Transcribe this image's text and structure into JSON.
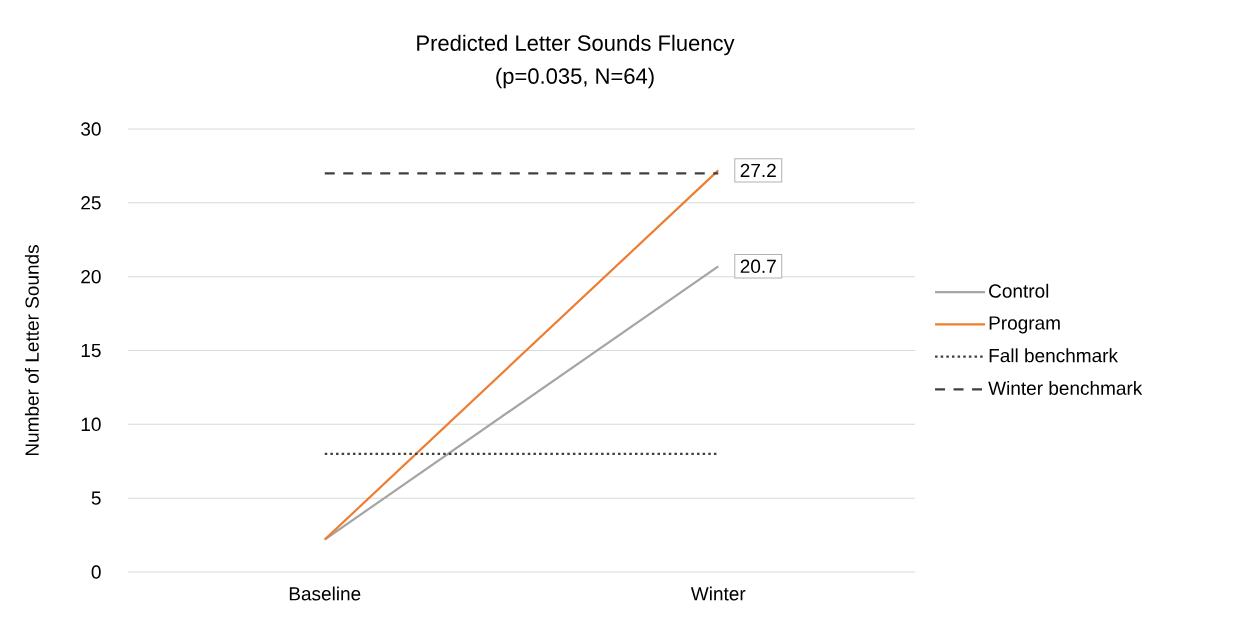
{
  "chart_data": {
    "type": "line",
    "title": "Predicted Letter Sounds Fluency",
    "subtitle": "(p=0.035, N=64)",
    "ylabel": "Number of Letter Sounds",
    "categories": [
      "Baseline",
      "Winter"
    ],
    "series": [
      {
        "name": "Control",
        "color": "#a5a5a5",
        "values": [
          2.2,
          20.7
        ],
        "value_labels": [
          null,
          "20.7"
        ]
      },
      {
        "name": "Program",
        "color": "#ed7d31",
        "values": [
          2.2,
          27.2
        ],
        "value_labels": [
          null,
          "27.2"
        ]
      },
      {
        "name": "Fall benchmark",
        "color": "#404040",
        "values": [
          8,
          8
        ],
        "line_style": "dotted"
      },
      {
        "name": "Winter benchmark",
        "color": "#404040",
        "values": [
          27,
          27
        ],
        "line_style": "dashed"
      }
    ],
    "ylim": [
      0,
      30
    ],
    "yticks": [
      0,
      5,
      10,
      15,
      20,
      25,
      30
    ],
    "grid": "y",
    "legend": "right",
    "marker": "none",
    "line_style": "solid"
  }
}
